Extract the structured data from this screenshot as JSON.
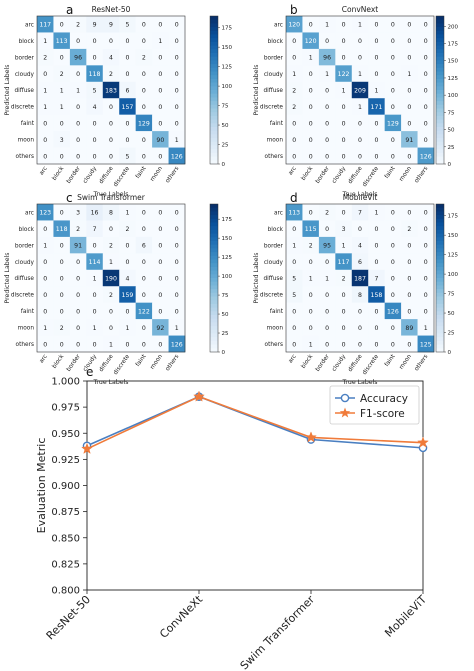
{
  "colors": {
    "accuracy": "#4a7fc1",
    "f1": "#f07b3a",
    "cmap_low": "#ffffff",
    "cmap_high": "#08306b",
    "axis": "#222222"
  },
  "chart_data": [
    {
      "type": "heatmap",
      "letter": "a",
      "title": "ResNet-50",
      "xlabel": "True Labels",
      "ylabel": "Predicted Labels",
      "labels": [
        "arc",
        "block",
        "border",
        "cloudy",
        "diffuse",
        "discrete",
        "faint",
        "moon",
        "others"
      ],
      "colorbar": {
        "max": 190,
        "ticks": [
          0,
          25,
          50,
          75,
          100,
          125,
          150,
          175
        ]
      },
      "matrix": [
        [
          117,
          0,
          2,
          9,
          9,
          5,
          0,
          0,
          0
        ],
        [
          1,
          113,
          0,
          0,
          0,
          0,
          0,
          1,
          0
        ],
        [
          2,
          0,
          96,
          0,
          4,
          0,
          2,
          0,
          0
        ],
        [
          0,
          2,
          0,
          118,
          2,
          0,
          0,
          0,
          0
        ],
        [
          1,
          1,
          1,
          5,
          183,
          6,
          0,
          0,
          0
        ],
        [
          1,
          1,
          0,
          4,
          0,
          157,
          0,
          0,
          0
        ],
        [
          0,
          0,
          0,
          0,
          0,
          0,
          129,
          0,
          0
        ],
        [
          0,
          3,
          0,
          0,
          0,
          0,
          0,
          90,
          1
        ],
        [
          0,
          0,
          0,
          0,
          0,
          5,
          0,
          0,
          126
        ]
      ]
    },
    {
      "type": "heatmap",
      "letter": "b",
      "title": "ConvNext",
      "xlabel": "True Labels",
      "ylabel": "Predicted Labels",
      "labels": [
        "arc",
        "block",
        "border",
        "cloudy",
        "diffuse",
        "discrete",
        "faint",
        "moon",
        "others"
      ],
      "colorbar": {
        "max": 215,
        "ticks": [
          0,
          25,
          50,
          75,
          100,
          125,
          150,
          175,
          200
        ]
      },
      "matrix": [
        [
          120,
          0,
          1,
          0,
          1,
          0,
          0,
          0,
          0
        ],
        [
          0,
          120,
          0,
          0,
          0,
          0,
          0,
          0,
          0
        ],
        [
          0,
          1,
          96,
          0,
          0,
          0,
          0,
          0,
          0
        ],
        [
          1,
          0,
          1,
          122,
          1,
          0,
          0,
          1,
          0
        ],
        [
          2,
          0,
          0,
          1,
          209,
          1,
          0,
          0,
          0
        ],
        [
          2,
          0,
          0,
          0,
          1,
          171,
          0,
          0,
          0
        ],
        [
          0,
          0,
          0,
          0,
          0,
          0,
          129,
          0,
          0
        ],
        [
          0,
          0,
          0,
          0,
          0,
          0,
          0,
          91,
          0
        ],
        [
          0,
          0,
          0,
          0,
          0,
          0,
          0,
          0,
          126
        ]
      ]
    },
    {
      "type": "heatmap",
      "letter": "c",
      "title": "Swim Transformer",
      "xlabel": "True Labels",
      "ylabel": "Predicted Labels",
      "labels": [
        "arc",
        "block",
        "border",
        "cloudy",
        "diffuse",
        "discrete",
        "faint",
        "moon",
        "others"
      ],
      "colorbar": {
        "max": 195,
        "ticks": [
          0,
          25,
          50,
          75,
          100,
          125,
          150,
          175
        ]
      },
      "matrix": [
        [
          123,
          0,
          3,
          16,
          8,
          1,
          0,
          0,
          0
        ],
        [
          0,
          118,
          2,
          7,
          0,
          2,
          0,
          0,
          0
        ],
        [
          1,
          0,
          91,
          0,
          2,
          0,
          6,
          0,
          0
        ],
        [
          0,
          0,
          0,
          114,
          1,
          0,
          0,
          0,
          0
        ],
        [
          0,
          0,
          0,
          1,
          190,
          4,
          0,
          0,
          0
        ],
        [
          0,
          0,
          0,
          0,
          2,
          159,
          0,
          0,
          0
        ],
        [
          0,
          0,
          0,
          0,
          0,
          0,
          122,
          0,
          0
        ],
        [
          1,
          2,
          0,
          1,
          0,
          1,
          0,
          92,
          1
        ],
        [
          0,
          0,
          0,
          0,
          1,
          0,
          0,
          0,
          126
        ]
      ]
    },
    {
      "type": "heatmap",
      "letter": "d",
      "title": "MobileVit",
      "xlabel": "True Labels",
      "ylabel": "Predicted Labels",
      "labels": [
        "arc",
        "block",
        "border",
        "cloudy",
        "diffuse",
        "discrete",
        "faint",
        "moon",
        "others"
      ],
      "colorbar": {
        "max": 190,
        "ticks": [
          0,
          25,
          50,
          75,
          100,
          125,
          150,
          175
        ]
      },
      "matrix": [
        [
          113,
          0,
          2,
          0,
          7,
          1,
          0,
          0,
          0
        ],
        [
          0,
          115,
          0,
          3,
          0,
          0,
          0,
          2,
          0
        ],
        [
          1,
          2,
          95,
          1,
          4,
          0,
          0,
          0,
          0
        ],
        [
          0,
          0,
          0,
          117,
          6,
          0,
          0,
          0,
          0
        ],
        [
          5,
          1,
          1,
          2,
          187,
          7,
          0,
          0,
          0
        ],
        [
          5,
          0,
          0,
          0,
          8,
          158,
          0,
          0,
          0
        ],
        [
          0,
          0,
          0,
          0,
          0,
          0,
          126,
          0,
          0
        ],
        [
          0,
          0,
          0,
          0,
          0,
          0,
          0,
          89,
          1
        ],
        [
          0,
          1,
          0,
          0,
          0,
          0,
          0,
          0,
          125
        ]
      ]
    },
    {
      "type": "line",
      "letter": "e",
      "ylabel": "Evaluation Metric",
      "categories": [
        "ResNet-50",
        "ConvNeXt",
        "Swim Transformer",
        "MobileViT"
      ],
      "ylim": [
        0.8,
        1.0
      ],
      "yticks": [
        "0.800",
        "0.825",
        "0.850",
        "0.875",
        "0.900",
        "0.925",
        "0.950",
        "0.975",
        "1.000"
      ],
      "legend_position": "top-right",
      "series": [
        {
          "name": "Accuracy",
          "marker": "circle",
          "values": [
            0.938,
            0.985,
            0.944,
            0.936
          ]
        },
        {
          "name": "F1-score",
          "marker": "star",
          "values": [
            0.935,
            0.985,
            0.946,
            0.941
          ]
        }
      ]
    }
  ]
}
